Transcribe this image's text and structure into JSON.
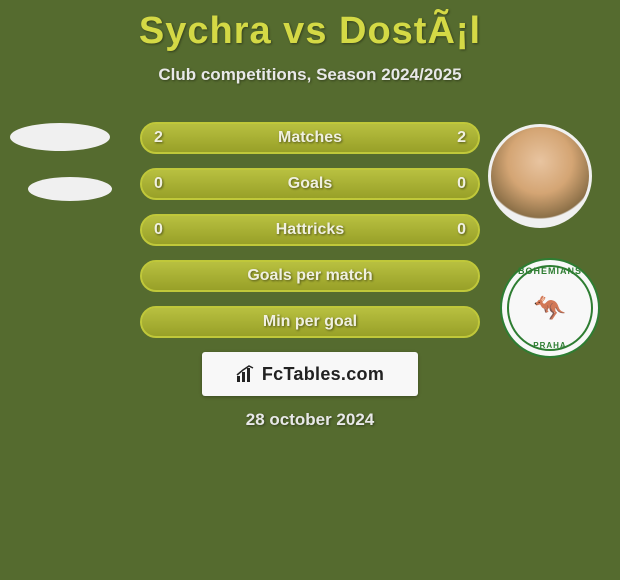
{
  "title": "Sychra vs DostÃ¡l",
  "subtitle": "Club competitions, Season 2024/2025",
  "date": "28 october 2024",
  "brand": "FcTables.com",
  "colors": {
    "background": "#556b2f",
    "title": "#d4d945",
    "text": "#e8e8e8",
    "bar_border": "#c0c83a",
    "bar_fill_top": "#b8c040",
    "bar_fill_bottom": "#98a028",
    "brand_bg": "#f8f8f8",
    "brand_text": "#222222",
    "crest_green": "#2e7d32"
  },
  "crest": {
    "top": "BOHEMIANS",
    "bottom": "PRAHA",
    "glyph": "🦘"
  },
  "bars": [
    {
      "label": "Matches",
      "left": "2",
      "right": "2",
      "left_pct": 50,
      "right_pct": 50,
      "show_values": true
    },
    {
      "label": "Goals",
      "left": "0",
      "right": "0",
      "left_pct": 100,
      "right_pct": 0,
      "show_values": true
    },
    {
      "label": "Hattricks",
      "left": "0",
      "right": "0",
      "left_pct": 100,
      "right_pct": 0,
      "show_values": true
    },
    {
      "label": "Goals per match",
      "left": "",
      "right": "",
      "left_pct": 100,
      "right_pct": 0,
      "show_values": false
    },
    {
      "label": "Min per goal",
      "left": "",
      "right": "",
      "left_pct": 100,
      "right_pct": 0,
      "show_values": false
    }
  ]
}
